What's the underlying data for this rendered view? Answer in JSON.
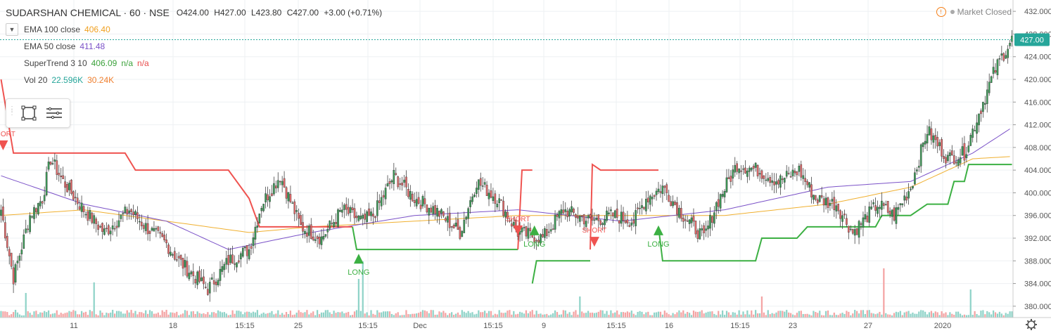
{
  "header": {
    "title": "SUDARSHAN CHEMICAL · 60 · NSE",
    "open": "O424.00",
    "high": "H427.00",
    "low": "L423.80",
    "close": "C427.00",
    "change": "+3.00 (+0.71%)",
    "market_status": "Market Closed"
  },
  "indicators": [
    {
      "name": "EMA 100 close",
      "values": [
        "406.40"
      ],
      "colors": [
        "#f0a020"
      ]
    },
    {
      "name": "EMA 50 close",
      "values": [
        "411.48"
      ],
      "colors": [
        "#7b52c8"
      ]
    },
    {
      "name": "SuperTrend 3 10",
      "values": [
        "406.09",
        "n/a",
        "n/a"
      ],
      "colors": [
        "#3ca23c",
        "#3ca23c",
        "#e84c4c"
      ]
    },
    {
      "name": "Vol 20",
      "values": [
        "22.596K",
        "30.24K"
      ],
      "colors": [
        "#26a69a",
        "#f08030"
      ]
    }
  ],
  "colors": {
    "up": "#3c9a57",
    "down": "#e36a6a",
    "ema100": "#f0b030",
    "ema50": "#7b52c8",
    "st_up": "#3cb043",
    "st_down": "#ef5350",
    "vol_up": "#8fd3c8",
    "vol_down": "#f4a4a4",
    "last_price_bg": "#26a69a"
  },
  "chart_data": {
    "type": "candlestick",
    "ylim": [
      378,
      434
    ],
    "y_ticks": [
      380,
      384,
      388,
      392,
      396,
      400,
      404,
      408,
      412,
      416,
      420,
      424,
      428,
      432
    ],
    "last_price": "427.00",
    "x_labels": [
      "11",
      "18",
      "15:15",
      "25",
      "15:15",
      "Dec",
      "15:15",
      "9",
      "15:15",
      "16",
      "15:15",
      "23",
      "27",
      "2020"
    ],
    "signals": [
      {
        "label": "SHORT",
        "type": "short"
      },
      {
        "label": "LONG",
        "type": "long"
      },
      {
        "label": "SHORT",
        "type": "short"
      },
      {
        "label": "LONG",
        "type": "long"
      },
      {
        "label": "SHORT",
        "type": "short"
      },
      {
        "label": "LONG",
        "type": "long"
      }
    ],
    "anchors": [
      [
        0,
        397
      ],
      [
        6,
        385
      ],
      [
        14,
        396
      ],
      [
        20,
        399
      ],
      [
        24,
        406
      ],
      [
        30,
        402
      ],
      [
        40,
        397
      ],
      [
        50,
        393
      ],
      [
        62,
        397
      ],
      [
        70,
        394
      ],
      [
        80,
        391
      ],
      [
        86,
        388
      ],
      [
        100,
        383
      ],
      [
        110,
        388
      ],
      [
        120,
        390
      ],
      [
        126,
        398
      ],
      [
        135,
        403
      ],
      [
        145,
        394
      ],
      [
        155,
        392
      ],
      [
        165,
        397
      ],
      [
        175,
        395
      ],
      [
        180,
        396
      ],
      [
        190,
        403
      ],
      [
        200,
        399
      ],
      [
        210,
        397
      ],
      [
        222,
        393
      ],
      [
        230,
        402
      ],
      [
        240,
        399
      ],
      [
        250,
        393
      ],
      [
        262,
        392
      ],
      [
        272,
        397
      ],
      [
        285,
        395
      ],
      [
        296,
        396
      ],
      [
        306,
        395
      ],
      [
        312,
        399
      ],
      [
        320,
        401
      ],
      [
        330,
        396
      ],
      [
        340,
        392
      ],
      [
        346,
        398
      ],
      [
        356,
        405
      ],
      [
        366,
        404
      ],
      [
        376,
        402
      ],
      [
        386,
        404
      ],
      [
        394,
        399
      ],
      [
        404,
        398
      ],
      [
        412,
        393
      ],
      [
        424,
        398
      ],
      [
        432,
        396
      ],
      [
        440,
        401
      ],
      [
        448,
        411
      ],
      [
        458,
        406
      ],
      [
        466,
        407
      ],
      [
        472,
        413
      ],
      [
        480,
        421
      ],
      [
        484,
        424
      ],
      [
        489,
        427
      ]
    ],
    "ema100_pts": [
      [
        0,
        396
      ],
      [
        40,
        397
      ],
      [
        80,
        395
      ],
      [
        120,
        393
      ],
      [
        150,
        394
      ],
      [
        200,
        395
      ],
      [
        250,
        396
      ],
      [
        300,
        396
      ],
      [
        350,
        396
      ],
      [
        400,
        398
      ],
      [
        440,
        401
      ],
      [
        470,
        406
      ],
      [
        489,
        406.4
      ]
    ],
    "ema50_pts": [
      [
        0,
        403
      ],
      [
        40,
        398
      ],
      [
        80,
        395
      ],
      [
        110,
        390
      ],
      [
        150,
        393
      ],
      [
        200,
        396
      ],
      [
        250,
        397
      ],
      [
        300,
        395
      ],
      [
        350,
        397
      ],
      [
        400,
        401
      ],
      [
        440,
        402
      ],
      [
        470,
        407
      ],
      [
        489,
        411.5
      ]
    ],
    "supertrend": [
      {
        "dir": "down",
        "pts": [
          [
            0,
            420
          ],
          [
            6,
            407
          ],
          [
            60,
            407
          ],
          [
            65,
            404
          ],
          [
            110,
            404
          ],
          [
            118,
            400
          ],
          [
            120,
            399
          ],
          [
            125,
            394
          ],
          [
            170,
            394
          ]
        ]
      },
      {
        "dir": "up",
        "pts": [
          [
            170,
            394
          ],
          [
            172,
            390
          ],
          [
            250,
            390
          ]
        ]
      },
      {
        "dir": "down",
        "pts": [
          [
            250,
            390
          ],
          [
            252,
            404
          ],
          [
            257,
            404
          ]
        ]
      },
      {
        "dir": "up",
        "pts": [
          [
            257,
            384
          ],
          [
            259,
            388
          ],
          [
            285,
            388
          ]
        ]
      },
      {
        "dir": "down",
        "pts": [
          [
            285,
            390
          ],
          [
            286,
            405
          ],
          [
            290,
            404
          ],
          [
            318,
            404
          ]
        ]
      },
      {
        "dir": "up",
        "pts": [
          [
            318,
            394
          ],
          [
            320,
            388
          ],
          [
            365,
            388
          ],
          [
            368,
            392
          ],
          [
            385,
            392
          ],
          [
            390,
            394
          ],
          [
            423,
            394
          ],
          [
            426,
            396
          ],
          [
            440,
            396
          ],
          [
            448,
            398
          ],
          [
            458,
            398
          ],
          [
            461,
            402
          ],
          [
            466,
            402
          ],
          [
            468,
            405
          ],
          [
            489,
            405
          ]
        ]
      }
    ],
    "volume_spikes": [
      [
        12,
        0.35
      ],
      [
        45,
        0.5
      ],
      [
        173,
        0.55
      ],
      [
        175,
        0.8
      ],
      [
        280,
        0.3
      ],
      [
        368,
        0.3
      ],
      [
        427,
        0.7
      ],
      [
        469,
        0.4
      ]
    ]
  }
}
